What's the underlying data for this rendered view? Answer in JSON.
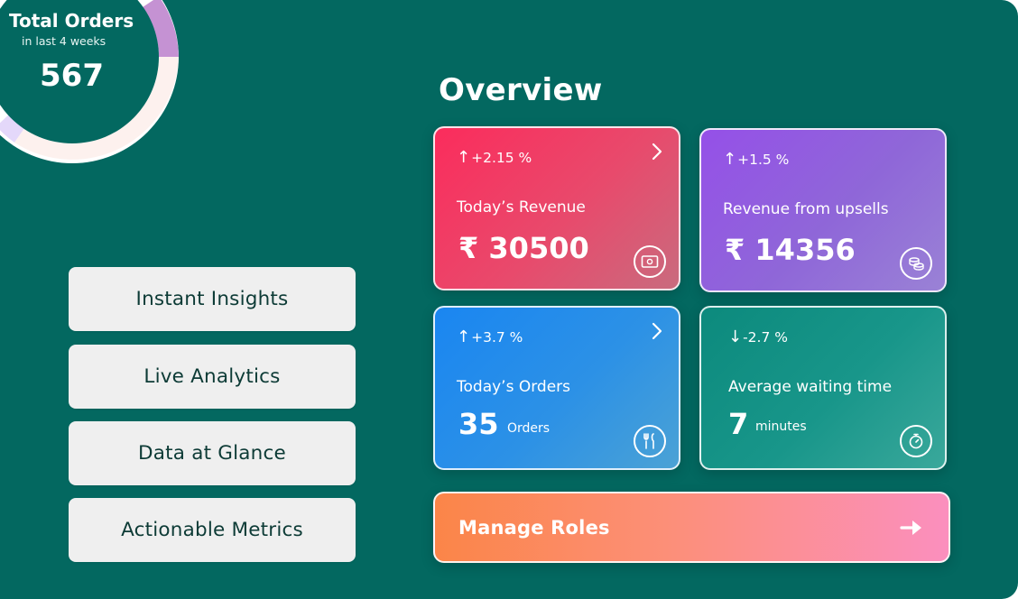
{
  "total_orders": {
    "title": "Total Orders",
    "subtitle": "in last 4 weeks",
    "value": "567",
    "colors": {
      "ring": "#fdf1ee",
      "segment_a": "#c592d3",
      "segment_b": "#e4d8fa"
    }
  },
  "features": [
    {
      "label": "Instant Insights"
    },
    {
      "label": "Live Analytics"
    },
    {
      "label": "Data at Glance"
    },
    {
      "label": "Actionable Metrics"
    }
  ],
  "overview": {
    "title": "Overview",
    "cards": [
      {
        "change_arrow": "↑",
        "change": "+2.15 %",
        "label": "Today’s Revenue",
        "value": "₹ 30500",
        "unit": "",
        "icon": "money-icon",
        "has_chevron": true
      },
      {
        "change_arrow": "↑",
        "change": "+1.5 %",
        "label": "Revenue from upsells",
        "value": "₹ 14356",
        "unit": "",
        "icon": "coins-icon",
        "has_chevron": false
      },
      {
        "change_arrow": "↑",
        "change": "+3.7 %",
        "label": "Today’s Orders",
        "value": "35",
        "unit": "Orders",
        "icon": "cutlery-icon",
        "has_chevron": true
      },
      {
        "change_arrow": "↓",
        "change": "-2.7 %",
        "label": "Average waiting time",
        "value": "7",
        "unit": "minutes",
        "icon": "stopwatch-icon",
        "has_chevron": false
      }
    ],
    "manage_roles": {
      "label": "Manage Roles",
      "icon": "arrow-right-icon"
    }
  },
  "colors": {
    "background": "#036860",
    "revenue": "#fb2c5c",
    "upsells": "#9550e8",
    "orders": "#1a86f1",
    "waiting": "#0c8a7d",
    "manage_roles_start": "#fb8548",
    "manage_roles_end": "#fb8fbe"
  }
}
